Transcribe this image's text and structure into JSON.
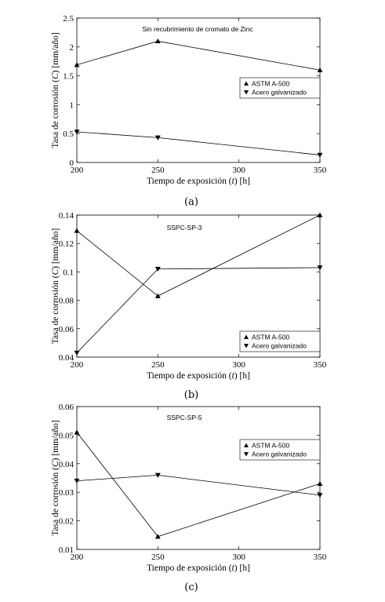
{
  "chart_data": [
    {
      "type": "line",
      "panel_label": "(a)",
      "title": "Sin recubrimiento de cromato de Zinc",
      "xlabel": "Tiempo de exposición (t) [h]",
      "ylabel": "Tasa de corrosión (C) [mm/año]",
      "xlim": [
        200,
        350
      ],
      "ylim": [
        0,
        2.5
      ],
      "xticks": [
        200,
        250,
        300,
        350
      ],
      "yticks": [
        0,
        0.5,
        1,
        1.5,
        2,
        2.5
      ],
      "ytick_labels": [
        "0",
        "0.5",
        "1",
        "1.5",
        "2",
        "2.5"
      ],
      "legend_position": "middle-right",
      "x": [
        200,
        250,
        350
      ],
      "series": [
        {
          "name": "ASTM A-500",
          "marker": "triangle-up",
          "values": [
            1.69,
            2.1,
            1.6
          ]
        },
        {
          "name": "Acero galvanizado",
          "marker": "triangle-down",
          "values": [
            0.53,
            0.43,
            0.13
          ]
        }
      ]
    },
    {
      "type": "line",
      "panel_label": "(b)",
      "title": "SSPC-SP-3",
      "xlabel": "Tiempo de exposición (t) [h]",
      "ylabel": "Tasa de corrosión (C) [mm/año]",
      "xlim": [
        200,
        350
      ],
      "ylim": [
        0.04,
        0.14
      ],
      "xticks": [
        200,
        250,
        300,
        350
      ],
      "yticks": [
        0.04,
        0.06,
        0.08,
        0.1,
        0.12,
        0.14
      ],
      "ytick_labels": [
        "0.04",
        "0.06",
        "0.08",
        "0.1",
        "0.12",
        "0.14"
      ],
      "legend_position": "bottom-right",
      "x": [
        200,
        250,
        350
      ],
      "series": [
        {
          "name": "ASTM A-500",
          "marker": "triangle-up",
          "values": [
            0.129,
            0.083,
            0.14
          ]
        },
        {
          "name": "Acero galvanizado",
          "marker": "triangle-down",
          "values": [
            0.043,
            0.102,
            0.103
          ]
        }
      ]
    },
    {
      "type": "line",
      "panel_label": "(c)",
      "title": "SSPC-SP-5",
      "xlabel": "Tiempo de exposición (t) [h]",
      "ylabel": "Tasa de corrosión (C) [mm/año]",
      "xlim": [
        200,
        350
      ],
      "ylim": [
        0.01,
        0.06
      ],
      "xticks": [
        200,
        250,
        300,
        350
      ],
      "yticks": [
        0.01,
        0.02,
        0.03,
        0.04,
        0.05,
        0.06
      ],
      "ytick_labels": [
        "0.01",
        "0.02",
        "0.03",
        "0.04",
        "0.05",
        "0.06"
      ],
      "legend_position": "top-right",
      "x": [
        200,
        250,
        350
      ],
      "series": [
        {
          "name": "ASTM A-500",
          "marker": "triangle-up",
          "values": [
            0.051,
            0.0145,
            0.033
          ]
        },
        {
          "name": "Acero galvanizado",
          "marker": "triangle-down",
          "values": [
            0.034,
            0.036,
            0.029
          ]
        }
      ]
    }
  ]
}
